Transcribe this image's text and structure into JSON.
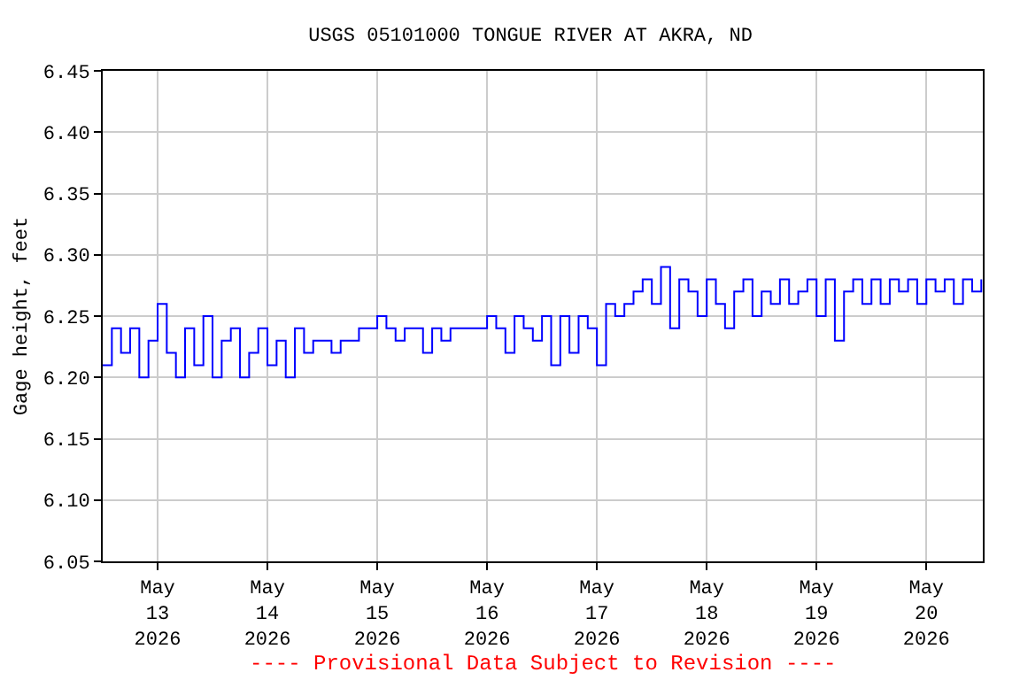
{
  "chart_data": {
    "type": "step",
    "title": "USGS 05101000 TONGUE RIVER AT AKRA, ND",
    "ylabel": "Gage height, feet",
    "x": [
      "2026-05-12T12:00",
      "2026-05-12T14:00",
      "2026-05-12T16:00",
      "2026-05-12T18:00",
      "2026-05-12T20:00",
      "2026-05-12T22:00",
      "2026-05-13T00:00",
      "2026-05-13T02:00",
      "2026-05-13T04:00",
      "2026-05-13T06:00",
      "2026-05-13T08:00",
      "2026-05-13T10:00",
      "2026-05-13T12:00",
      "2026-05-13T14:00",
      "2026-05-13T16:00",
      "2026-05-13T18:00",
      "2026-05-13T20:00",
      "2026-05-13T22:00",
      "2026-05-14T00:00",
      "2026-05-14T02:00",
      "2026-05-14T04:00",
      "2026-05-14T06:00",
      "2026-05-14T08:00",
      "2026-05-14T10:00",
      "2026-05-14T12:00",
      "2026-05-14T14:00",
      "2026-05-14T16:00",
      "2026-05-14T18:00",
      "2026-05-14T20:00",
      "2026-05-14T22:00",
      "2026-05-15T00:00",
      "2026-05-15T02:00",
      "2026-05-15T04:00",
      "2026-05-15T06:00",
      "2026-05-15T08:00",
      "2026-05-15T10:00",
      "2026-05-15T12:00",
      "2026-05-15T14:00",
      "2026-05-15T16:00",
      "2026-05-15T18:00",
      "2026-05-15T20:00",
      "2026-05-15T22:00",
      "2026-05-16T00:00",
      "2026-05-16T02:00",
      "2026-05-16T04:00",
      "2026-05-16T06:00",
      "2026-05-16T08:00",
      "2026-05-16T10:00",
      "2026-05-16T12:00",
      "2026-05-16T14:00",
      "2026-05-16T16:00",
      "2026-05-16T18:00",
      "2026-05-16T20:00",
      "2026-05-16T22:00",
      "2026-05-17T00:00",
      "2026-05-17T02:00",
      "2026-05-17T04:00",
      "2026-05-17T06:00",
      "2026-05-17T08:00",
      "2026-05-17T10:00",
      "2026-05-17T12:00",
      "2026-05-17T14:00",
      "2026-05-17T16:00",
      "2026-05-17T18:00",
      "2026-05-17T20:00",
      "2026-05-17T22:00",
      "2026-05-18T00:00",
      "2026-05-18T02:00",
      "2026-05-18T04:00",
      "2026-05-18T06:00",
      "2026-05-18T08:00",
      "2026-05-18T10:00",
      "2026-05-18T12:00",
      "2026-05-18T14:00",
      "2026-05-18T16:00",
      "2026-05-18T18:00",
      "2026-05-18T20:00",
      "2026-05-18T22:00",
      "2026-05-19T00:00",
      "2026-05-19T02:00",
      "2026-05-19T04:00",
      "2026-05-19T06:00",
      "2026-05-19T08:00",
      "2026-05-19T10:00",
      "2026-05-19T12:00",
      "2026-05-19T14:00",
      "2026-05-19T16:00",
      "2026-05-19T18:00",
      "2026-05-19T20:00",
      "2026-05-19T22:00",
      "2026-05-20T00:00",
      "2026-05-20T02:00",
      "2026-05-20T04:00",
      "2026-05-20T06:00",
      "2026-05-20T08:00",
      "2026-05-20T10:00",
      "2026-05-20T12:00"
    ],
    "series": [
      {
        "color": "#0000ff",
        "values": [
          6.21,
          6.24,
          6.22,
          6.24,
          6.2,
          6.23,
          6.26,
          6.22,
          6.2,
          6.24,
          6.21,
          6.25,
          6.2,
          6.23,
          6.24,
          6.2,
          6.22,
          6.24,
          6.21,
          6.23,
          6.2,
          6.24,
          6.22,
          6.23,
          6.23,
          6.22,
          6.23,
          6.23,
          6.24,
          6.24,
          6.25,
          6.24,
          6.23,
          6.24,
          6.24,
          6.22,
          6.24,
          6.23,
          6.24,
          6.24,
          6.24,
          6.24,
          6.25,
          6.24,
          6.22,
          6.25,
          6.24,
          6.23,
          6.25,
          6.21,
          6.25,
          6.22,
          6.25,
          6.24,
          6.21,
          6.26,
          6.25,
          6.26,
          6.27,
          6.28,
          6.26,
          6.29,
          6.24,
          6.28,
          6.27,
          6.25,
          6.28,
          6.26,
          6.24,
          6.27,
          6.28,
          6.25,
          6.27,
          6.26,
          6.28,
          6.26,
          6.27,
          6.28,
          6.25,
          6.28,
          6.23,
          6.27,
          6.28,
          6.26,
          6.28,
          6.26,
          6.28,
          6.27,
          6.28,
          6.26,
          6.28,
          6.27,
          6.28,
          6.26,
          6.28,
          6.27,
          6.28
        ]
      }
    ],
    "xlim": [
      "2026-05-12T12:00",
      "2026-05-20T12:20"
    ],
    "xticks": [
      {
        "value": "2026-05-13",
        "label": "May\n13\n2026"
      },
      {
        "value": "2026-05-14",
        "label": "May\n14\n2026"
      },
      {
        "value": "2026-05-15",
        "label": "May\n15\n2026"
      },
      {
        "value": "2026-05-16",
        "label": "May\n16\n2026"
      },
      {
        "value": "2026-05-17",
        "label": "May\n17\n2026"
      },
      {
        "value": "2026-05-18",
        "label": "May\n18\n2026"
      },
      {
        "value": "2026-05-19",
        "label": "May\n19\n2026"
      },
      {
        "value": "2026-05-20",
        "label": "May\n20\n2026"
      }
    ],
    "ylim": [
      6.05,
      6.45
    ],
    "yticks": [
      {
        "value": 6.05,
        "label": "6.05"
      },
      {
        "value": 6.1,
        "label": "6.10"
      },
      {
        "value": 6.15,
        "label": "6.15"
      },
      {
        "value": 6.2,
        "label": "6.20"
      },
      {
        "value": 6.25,
        "label": "6.25"
      },
      {
        "value": 6.3,
        "label": "6.30"
      },
      {
        "value": 6.35,
        "label": "6.35"
      },
      {
        "value": 6.4,
        "label": "6.40"
      },
      {
        "value": 6.45,
        "label": "6.45"
      }
    ],
    "grid": true,
    "annotations": [
      "---- Provisional Data Subject to Revision ----"
    ]
  }
}
